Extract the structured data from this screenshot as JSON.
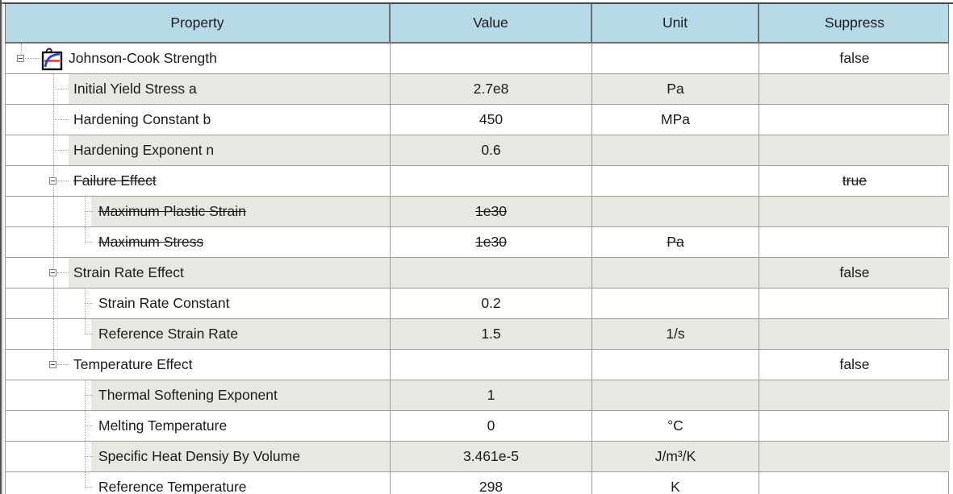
{
  "table": {
    "header": {
      "columns": [
        "Property",
        "Value",
        "Unit",
        "Suppress"
      ]
    },
    "rows": [
      {
        "property": "Johnson-Cook Strength",
        "value": "",
        "unit": "",
        "suppress": "false",
        "level": 1,
        "group": true,
        "expander_state": "expanded",
        "struck": false,
        "shaded": false,
        "icon": "material-curve-icon"
      },
      {
        "property": "Initial Yield Stress a",
        "value": "2.7e8",
        "unit": "Pa",
        "suppress": "",
        "level": 2,
        "group": false,
        "struck": false,
        "shaded": true
      },
      {
        "property": "Hardening Constant b",
        "value": "450",
        "unit": "MPa",
        "suppress": "",
        "level": 2,
        "group": false,
        "struck": false,
        "shaded": false
      },
      {
        "property": "Hardening Exponent n",
        "value": "0.6",
        "unit": "",
        "suppress": "",
        "level": 2,
        "group": false,
        "struck": false,
        "shaded": true
      },
      {
        "property": "Failure Effect",
        "value": "",
        "unit": "",
        "suppress": "true",
        "level": 2,
        "group": true,
        "expander_state": "expanded",
        "struck": true,
        "shaded": false
      },
      {
        "property": "Maximum Plastic Strain",
        "value": "1e30",
        "unit": "",
        "suppress": "",
        "level": 3,
        "group": false,
        "struck": true,
        "shaded": true
      },
      {
        "property": "Maximum Stress",
        "value": "1e30",
        "unit": "Pa",
        "suppress": "",
        "level": 3,
        "group": false,
        "struck": true,
        "shaded": false
      },
      {
        "property": "Strain Rate Effect",
        "value": "",
        "unit": "",
        "suppress": "false",
        "level": 2,
        "group": true,
        "expander_state": "expanded",
        "struck": false,
        "shaded": true
      },
      {
        "property": "Strain Rate Constant",
        "value": "0.2",
        "unit": "",
        "suppress": "",
        "level": 3,
        "group": false,
        "struck": false,
        "shaded": false
      },
      {
        "property": "Reference Strain Rate",
        "value": "1.5",
        "unit": "1/s",
        "suppress": "",
        "level": 3,
        "group": false,
        "struck": false,
        "shaded": true
      },
      {
        "property": "Temperature Effect",
        "value": "",
        "unit": "",
        "suppress": "false",
        "level": 2,
        "group": true,
        "expander_state": "expanded",
        "struck": false,
        "shaded": false
      },
      {
        "property": "Thermal Softening Exponent",
        "value": "1",
        "unit": "",
        "suppress": "",
        "level": 3,
        "group": false,
        "struck": false,
        "shaded": true
      },
      {
        "property": "Melting Temperature",
        "value": "0",
        "unit": "°C",
        "suppress": "",
        "level": 3,
        "group": false,
        "struck": false,
        "shaded": false
      },
      {
        "property": "Specific Heat Densiy By Volume",
        "value": "3.461e-5",
        "unit": "J/m³/K",
        "suppress": "",
        "level": 3,
        "group": false,
        "struck": false,
        "shaded": true
      },
      {
        "property": "Reference Temperature",
        "value": "298",
        "unit": "K",
        "suppress": "",
        "level": 3,
        "group": false,
        "struck": false,
        "shaded": false
      }
    ],
    "colors": {
      "header_bg": "#b7dae8",
      "header_border": "#6e6e6e",
      "grid_line": "#9d9d9d",
      "shaded_row": "#e8e7e2",
      "tree_line": "#9f9f9f",
      "text": "#1b1b1b",
      "icon_curve_blue": "#2743d6",
      "icon_line_red": "#e43235"
    }
  }
}
